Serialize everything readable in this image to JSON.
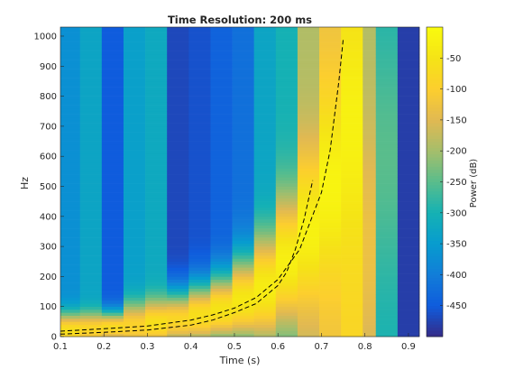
{
  "chart_data": {
    "type": "heatmap",
    "title": "Time Resolution: 200 ms",
    "xlabel": "Time (s)",
    "ylabel": "Hz",
    "colorbar_label": "Power (dB)",
    "xlim": [
      0.1,
      0.925
    ],
    "ylim": [
      0,
      1030
    ],
    "clim": [
      -500,
      0
    ],
    "colormap": "parula",
    "x_ticks": [
      0.1,
      0.2,
      0.3,
      0.4,
      0.5,
      0.6,
      0.7,
      0.8,
      0.9
    ],
    "x_tick_labels": [
      "0.1",
      "0.2",
      "0.3",
      "0.4",
      "0.5",
      "0.6",
      "0.7",
      "0.8",
      "0.9"
    ],
    "y_ticks": [
      0,
      100,
      200,
      300,
      400,
      500,
      600,
      700,
      800,
      900,
      1000
    ],
    "y_tick_labels": [
      "0",
      "100",
      "200",
      "300",
      "400",
      "500",
      "600",
      "700",
      "800",
      "900",
      "1000"
    ],
    "colorbar_ticks": [
      -50,
      -100,
      -150,
      -200,
      -250,
      -300,
      -350,
      -400,
      -450
    ],
    "colorbar_tick_labels": [
      "-50",
      "-100",
      "-150",
      "-200",
      "-250",
      "-300",
      "-350",
      "-400",
      "-450"
    ],
    "time_bins": [
      {
        "t0": 0.1,
        "t1": 0.145,
        "base": -370,
        "peak": -60,
        "peak_hz": 20,
        "width_hz": 60
      },
      {
        "t0": 0.145,
        "t1": 0.195,
        "base": -330,
        "peak": -80,
        "peak_hz": 25,
        "width_hz": 55
      },
      {
        "t0": 0.195,
        "t1": 0.245,
        "base": -450,
        "peak": -70,
        "peak_hz": 30,
        "width_hz": 55
      },
      {
        "t0": 0.245,
        "t1": 0.295,
        "base": -340,
        "peak": -90,
        "peak_hz": 35,
        "width_hz": 80
      },
      {
        "t0": 0.295,
        "t1": 0.345,
        "base": -320,
        "peak": -60,
        "peak_hz": 45,
        "width_hz": 80
      },
      {
        "t0": 0.345,
        "t1": 0.395,
        "base": -470,
        "peak": -80,
        "peak_hz": 55,
        "width_hz": 100
      },
      {
        "t0": 0.395,
        "t1": 0.445,
        "base": -460,
        "peak": -60,
        "peak_hz": 70,
        "width_hz": 110
      },
      {
        "t0": 0.445,
        "t1": 0.495,
        "base": -440,
        "peak": -50,
        "peak_hz": 90,
        "width_hz": 120
      },
      {
        "t0": 0.495,
        "t1": 0.545,
        "base": -420,
        "peak": -40,
        "peak_hz": 120,
        "width_hz": 150
      },
      {
        "t0": 0.545,
        "t1": 0.595,
        "base": -330,
        "peak": -30,
        "peak_hz": 160,
        "width_hz": 180
      },
      {
        "t0": 0.595,
        "t1": 0.645,
        "base": -300,
        "peak": -25,
        "peak_hz": 250,
        "width_hz": 220
      },
      {
        "t0": 0.645,
        "t1": 0.695,
        "base": -190,
        "peak": -20,
        "peak_hz": 350,
        "width_hz": 260
      },
      {
        "t0": 0.695,
        "t1": 0.745,
        "base": -130,
        "peak": -15,
        "peak_hz": 500,
        "width_hz": 320
      },
      {
        "t0": 0.745,
        "t1": 0.795,
        "base": -85,
        "peak": -20,
        "peak_hz": 700,
        "width_hz": 400
      },
      {
        "t0": 0.795,
        "t1": 0.825,
        "base": -190,
        "peak": -130,
        "peak_hz": 300,
        "width_hz": 400
      },
      {
        "t0": 0.825,
        "t1": 0.875,
        "base": -300,
        "peak": -250,
        "peak_hz": 600,
        "width_hz": 400
      },
      {
        "t0": 0.875,
        "t1": 0.925,
        "base": -480,
        "peak": -480,
        "peak_hz": 500,
        "width_hz": 400
      }
    ],
    "series": [
      {
        "style": "dashed",
        "x": [
          0.1,
          0.2,
          0.3,
          0.4,
          0.45,
          0.5,
          0.55,
          0.6,
          0.62,
          0.64,
          0.66,
          0.68
        ],
        "y": [
          8,
          14,
          22,
          38,
          55,
          80,
          110,
          170,
          215,
          290,
          390,
          520
        ]
      },
      {
        "style": "dashed",
        "x": [
          0.1,
          0.2,
          0.3,
          0.4,
          0.45,
          0.5,
          0.55,
          0.6,
          0.65,
          0.7,
          0.72,
          0.74,
          0.75
        ],
        "y": [
          18,
          26,
          35,
          55,
          72,
          95,
          130,
          190,
          290,
          480,
          620,
          850,
          990
        ]
      }
    ]
  }
}
